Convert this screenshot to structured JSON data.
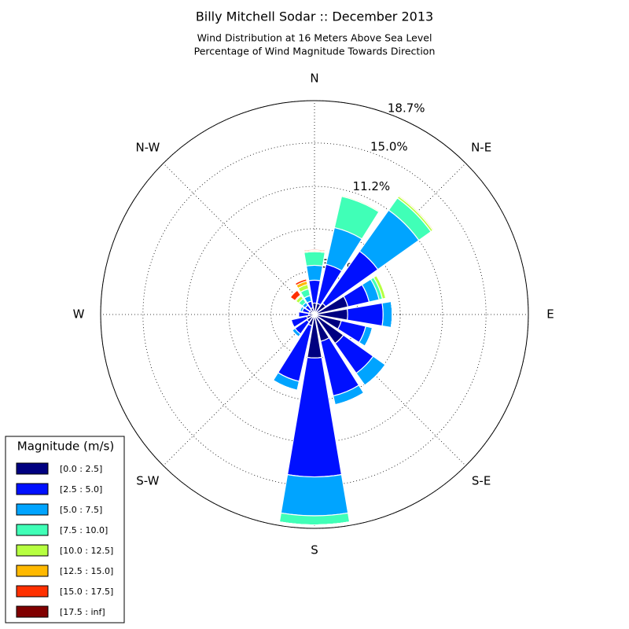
{
  "chart_data": {
    "type": "windrose",
    "title": "Billy Mitchell Sodar :: December 2013",
    "subtitle": [
      "Wind Distribution at 16 Meters Above Sea Level",
      "Percentage of Wind Magnitude Towards Direction"
    ],
    "angle_labels": [
      "N",
      "N-E",
      "E",
      "S-E",
      "S",
      "S-W",
      "W",
      "N-W"
    ],
    "legend_title": "Magnitude (m/s)",
    "legend_position": "lower left",
    "grid": true,
    "ylim": [
      0,
      18.7
    ],
    "yticks": [
      {
        "value": 3.8,
        "label": "3.8%"
      },
      {
        "value": 7.5,
        "label": "7.5%"
      },
      {
        "value": 11.2,
        "label": "11.2%"
      },
      {
        "value": 15.0,
        "label": "15.0%"
      },
      {
        "value": 18.7,
        "label": "18.7%"
      }
    ],
    "series": [
      {
        "name": "[0.0 : 2.5]",
        "color": "#000080",
        "values": [
          1.0,
          1.0,
          1.2,
          3.0,
          2.9,
          2.4,
          3.1,
          2.4,
          3.8,
          1.0,
          0.8,
          0.7,
          0.5,
          0.5,
          0.5,
          0.6
        ]
      },
      {
        "name": "[2.5 : 5.0]",
        "color": "#0010ff",
        "values": [
          2.0,
          3.5,
          5.6,
          1.9,
          3.1,
          2.2,
          3.2,
          4.9,
          10.4,
          5.0,
          1.3,
          1.4,
          0.9,
          0.6,
          0.5,
          0.6
        ]
      },
      {
        "name": "[5.0 : 7.5]",
        "color": "#00a4ff",
        "values": [
          1.3,
          3.3,
          4.4,
          0.9,
          0.8,
          0.6,
          1.3,
          0.8,
          3.4,
          0.8,
          0.3,
          0,
          0,
          0.2,
          0.3,
          0.5
        ]
      },
      {
        "name": "[7.5 : 10.0]",
        "color": "#40ffb7",
        "values": [
          1.2,
          2.8,
          1.3,
          0.3,
          0,
          0,
          0,
          0,
          0.8,
          0,
          0,
          0,
          0,
          0.1,
          0.4,
          0.6
        ]
      },
      {
        "name": "[10.0 : 12.5]",
        "color": "#b7ff40",
        "values": [
          0,
          0.1,
          0.2,
          0.3,
          0,
          0,
          0,
          0,
          0,
          0,
          0,
          0,
          0,
          0,
          0.3,
          0.4
        ]
      },
      {
        "name": "[12.5 : 15.0]",
        "color": "#ffb900",
        "values": [
          0.1,
          0,
          0.1,
          0,
          0,
          0,
          0,
          0,
          0,
          0,
          0,
          0,
          0,
          0,
          0.1,
          0.3
        ]
      },
      {
        "name": "[15.0 : 17.5]",
        "color": "#ff3000",
        "values": [
          0.1,
          0,
          0,
          0,
          0,
          0,
          0,
          0,
          0,
          0,
          0,
          0,
          0,
          0,
          0.5,
          0.2
        ]
      },
      {
        "name": "[17.5 : inf]",
        "color": "#800000",
        "values": [
          0,
          0,
          0,
          0,
          0,
          0,
          0,
          0,
          0,
          0,
          0,
          0,
          0,
          0,
          0,
          0
        ]
      }
    ]
  }
}
